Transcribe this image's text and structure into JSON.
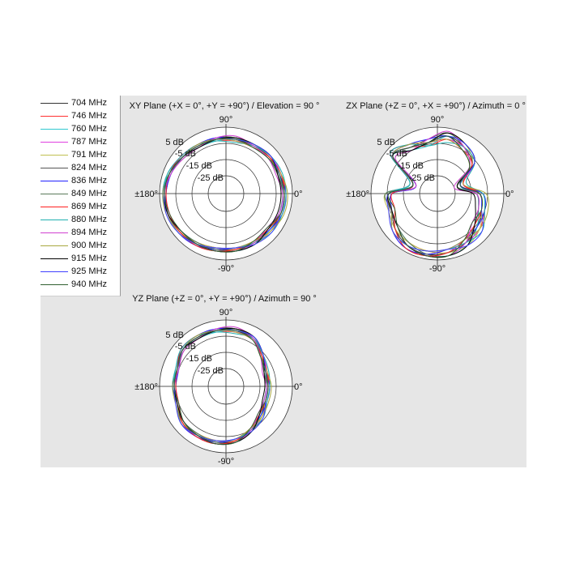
{
  "chart_data": [
    {
      "type": "polar-line",
      "title": "XY Plane (+X = 0°, +Y = +90°) / Elevation = 90 °",
      "angle_labels": {
        "a90": "90°",
        "a0": "0°",
        "a180": "±180°",
        "am90": "-90°"
      },
      "ring_labels": [
        "5 dB",
        "-5 dB",
        "-15 dB",
        "-25 dB"
      ],
      "rings_db": [
        5,
        -5,
        -15,
        -25
      ],
      "rlim_db": [
        -36,
        5
      ],
      "angles_deg": [
        0,
        20,
        40,
        60,
        80,
        100,
        120,
        140,
        160,
        180,
        200,
        220,
        240,
        260,
        280,
        300,
        320,
        340
      ],
      "series": [
        [
          0,
          -1,
          -1,
          -2,
          -2,
          -2,
          -2,
          -1,
          1,
          2,
          2,
          1,
          0,
          -1,
          -1,
          -1,
          -1,
          0
        ],
        [
          1,
          0,
          -1,
          -2,
          -3,
          -3,
          -2,
          -1,
          2,
          3,
          2,
          1,
          -1,
          -2,
          -1,
          -1,
          0,
          1
        ],
        [
          -1,
          -1,
          0,
          -1,
          -2,
          -3,
          -3,
          -1,
          2,
          3,
          2,
          0,
          -1,
          -1,
          0,
          0,
          -1,
          -1
        ],
        [
          0,
          0,
          0,
          -2,
          -3,
          -2,
          -1,
          0,
          1,
          1,
          2,
          2,
          1,
          -1,
          -2,
          -1,
          0,
          0
        ],
        [
          0,
          -2,
          -1,
          -1,
          -1,
          -2,
          -3,
          -2,
          1,
          3,
          3,
          1,
          -1,
          -2,
          -1,
          0,
          0,
          0
        ],
        [
          -1,
          -2,
          -1,
          -2,
          -1,
          -1,
          -2,
          -1,
          0,
          1,
          2,
          1,
          1,
          0,
          -1,
          -1,
          -2,
          -1
        ],
        [
          1,
          -1,
          -2,
          -3,
          -2,
          -1,
          -1,
          -1,
          0,
          1,
          2,
          2,
          1,
          -1,
          -2,
          -2,
          -1,
          1
        ],
        [
          0,
          -2,
          -2,
          -2,
          -1,
          -2,
          -3,
          -2,
          1,
          3,
          2,
          0,
          -1,
          -1,
          0,
          -1,
          -2,
          0
        ],
        [
          0,
          0,
          -1,
          -3,
          -3,
          -2,
          -1,
          0,
          1,
          1,
          1,
          1,
          1,
          0,
          -1,
          -2,
          -2,
          0
        ],
        [
          1,
          1,
          0,
          -2,
          -4,
          -3,
          -1,
          0,
          2,
          2,
          2,
          2,
          0,
          -2,
          -2,
          -1,
          1,
          1
        ],
        [
          -1,
          -3,
          -2,
          -2,
          0,
          -1,
          -3,
          -2,
          0,
          2,
          2,
          0,
          0,
          0,
          0,
          -1,
          -3,
          -1
        ],
        [
          2,
          0,
          -2,
          -3,
          -3,
          -2,
          -1,
          -1,
          1,
          2,
          2,
          2,
          0,
          -2,
          -2,
          -2,
          0,
          2
        ],
        [
          -2,
          -2,
          0,
          -1,
          -1,
          -2,
          -3,
          -1,
          1,
          2,
          2,
          0,
          0,
          0,
          0,
          0,
          -2,
          -2
        ],
        [
          0,
          -1,
          0,
          -1,
          -2,
          -2,
          -2,
          -1,
          1,
          2,
          3,
          2,
          0,
          -2,
          -2,
          0,
          1,
          0
        ],
        [
          0,
          -1,
          -2,
          -3,
          -2,
          -2,
          -2,
          -1,
          1,
          2,
          1,
          0,
          0,
          0,
          0,
          -2,
          -3,
          0
        ]
      ]
    },
    {
      "type": "polar-line",
      "title": "ZX Plane (+Z = 0°, +X = +90°) / Azimuth = 0 °",
      "angle_labels": {
        "a90": "90°",
        "a0": "0°",
        "a180": "±180°",
        "am90": "-90°"
      },
      "ring_labels": [
        "5 dB",
        "-5 dB",
        "-15 dB",
        "-25 dB"
      ],
      "rings_db": [
        5,
        -5,
        -15,
        -25
      ],
      "rlim_db": [
        -36,
        5
      ],
      "angles_deg": [
        0,
        20,
        40,
        60,
        80,
        100,
        120,
        140,
        160,
        180,
        200,
        220,
        240,
        260,
        280,
        300,
        320,
        340
      ],
      "series": [
        [
          -10,
          -21,
          -8,
          -3,
          0,
          -4,
          -3,
          0,
          -20,
          -6,
          -6,
          -2,
          1,
          2,
          1,
          -1,
          -4,
          -7
        ],
        [
          -8,
          -19,
          -8,
          -3,
          -2,
          -6,
          -3,
          0,
          -18,
          -4,
          -6,
          -2,
          -1,
          0,
          1,
          -1,
          -2,
          -5
        ],
        [
          -12,
          -21,
          -6,
          -1,
          0,
          -6,
          -5,
          0,
          -18,
          -4,
          -6,
          -4,
          -1,
          2,
          3,
          1,
          -4,
          -9
        ],
        [
          -10,
          -19,
          -6,
          -3,
          -2,
          -4,
          -1,
          2,
          -20,
          -8,
          -6,
          0,
          3,
          2,
          -1,
          -1,
          -2,
          -7
        ],
        [
          -10,
          -23,
          -8,
          -1,
          2,
          -4,
          -5,
          -2,
          -20,
          -4,
          -4,
          -2,
          -1,
          0,
          1,
          1,
          -2,
          -7
        ],
        [
          -12,
          -23,
          -8,
          -3,
          2,
          -2,
          -3,
          0,
          -22,
          -8,
          -6,
          -2,
          3,
          3,
          1,
          -1,
          -6,
          -9
        ],
        [
          -8,
          -21,
          -10,
          -5,
          0,
          -2,
          -1,
          0,
          -22,
          -8,
          -6,
          0,
          3,
          2,
          -1,
          -3,
          -4,
          -5
        ],
        [
          -10,
          -23,
          -10,
          -3,
          2,
          -4,
          -5,
          -2,
          -20,
          -4,
          -6,
          -4,
          -1,
          2,
          3,
          -1,
          -6,
          -7
        ],
        [
          -10,
          -19,
          -8,
          -5,
          -2,
          -4,
          -1,
          2,
          -20,
          -8,
          -8,
          -2,
          3,
          3,
          1,
          -3,
          -6,
          -7
        ],
        [
          -8,
          -17,
          -6,
          -3,
          -4,
          -6,
          -1,
          2,
          -18,
          -6,
          -6,
          0,
          1,
          0,
          -1,
          -1,
          0,
          -5
        ],
        [
          -12,
          -25,
          -10,
          -3,
          3,
          -2,
          -5,
          -2,
          -22,
          -6,
          -6,
          -4,
          1,
          3,
          3,
          -1,
          -8,
          -9
        ],
        [
          -6,
          -19,
          -10,
          -5,
          -2,
          -4,
          -1,
          0,
          -20,
          -6,
          -6,
          0,
          1,
          0,
          -1,
          -3,
          -2,
          -3
        ],
        [
          -14,
          -23,
          -6,
          -1,
          2,
          -4,
          -5,
          0,
          -20,
          -6,
          -6,
          -4,
          1,
          3,
          3,
          1,
          -6,
          -11
        ],
        [
          -10,
          -21,
          -6,
          -1,
          0,
          -4,
          -3,
          0,
          -20,
          -6,
          -4,
          0,
          1,
          0,
          -1,
          1,
          0,
          -7
        ],
        [
          -10,
          -21,
          -10,
          -5,
          0,
          -4,
          -3,
          0,
          -20,
          -6,
          -8,
          -4,
          1,
          3,
          3,
          -3,
          -8,
          -7
        ]
      ]
    },
    {
      "type": "polar-line",
      "title": "YZ Plane (+Z = 0°, +Y = +90°) / Azimuth = 90 °",
      "angle_labels": {
        "a90": "90°",
        "a0": "0°",
        "a180": "±180°",
        "am90": "-90°"
      },
      "ring_labels": [
        "5 dB",
        "-5 dB",
        "-15 dB",
        "-25 dB"
      ],
      "rings_db": [
        5,
        -5,
        -15,
        -25
      ],
      "rlim_db": [
        -36,
        5
      ],
      "angles_deg": [
        0,
        20,
        40,
        60,
        80,
        100,
        120,
        140,
        160,
        180,
        200,
        220,
        240,
        260,
        280,
        300,
        320,
        340
      ],
      "series": [
        [
          -10,
          -10,
          -7,
          -2,
          -1,
          -1,
          -1,
          -1,
          -4,
          -4,
          -4,
          -1,
          -1,
          -1,
          -2,
          -5,
          -8,
          -10
        ],
        [
          -9,
          -9,
          -7,
          -2,
          -2,
          -2,
          -1,
          -1,
          -3,
          -3,
          -4,
          -1,
          -2,
          -2,
          -2,
          -5,
          -7,
          -9
        ],
        [
          -11,
          -10,
          -6,
          -1,
          -1,
          -2,
          -2,
          -1,
          -3,
          -3,
          -4,
          -2,
          -2,
          -1,
          -1,
          -4,
          -8,
          -11
        ],
        [
          -10,
          -9,
          -6,
          -2,
          -2,
          -1,
          0,
          0,
          -4,
          -5,
          -4,
          0,
          0,
          -1,
          -3,
          -5,
          -7,
          -10
        ],
        [
          -10,
          -11,
          -7,
          -1,
          0,
          -1,
          -2,
          -2,
          -4,
          -3,
          -3,
          -1,
          -2,
          -2,
          -2,
          -4,
          -7,
          -10
        ],
        [
          -11,
          -11,
          -7,
          -2,
          0,
          0,
          -1,
          -1,
          -5,
          -5,
          -4,
          -1,
          0,
          0,
          -2,
          -5,
          -9,
          -11
        ],
        [
          -9,
          -10,
          -8,
          -3,
          -1,
          0,
          0,
          -1,
          -5,
          -5,
          -4,
          0,
          0,
          -1,
          -3,
          -6,
          -8,
          -9
        ],
        [
          -10,
          -11,
          -8,
          -2,
          0,
          -1,
          -2,
          -2,
          -4,
          -3,
          -4,
          -2,
          -2,
          -1,
          -1,
          -5,
          -9,
          -10
        ],
        [
          -10,
          -9,
          -7,
          -3,
          -2,
          -1,
          0,
          0,
          -4,
          -5,
          -5,
          -1,
          0,
          0,
          -2,
          -6,
          -9,
          -10
        ],
        [
          -9,
          -8,
          -6,
          -2,
          -3,
          -2,
          0,
          0,
          -3,
          -4,
          -4,
          0,
          -1,
          -2,
          -3,
          -5,
          -6,
          -9
        ],
        [
          -11,
          -12,
          -8,
          -2,
          1,
          0,
          -2,
          -2,
          -5,
          -4,
          -4,
          -2,
          -1,
          0,
          -1,
          -5,
          -10,
          -11
        ],
        [
          -8,
          -9,
          -8,
          -3,
          -2,
          -1,
          0,
          -1,
          -4,
          -4,
          -4,
          0,
          -1,
          -2,
          -3,
          -6,
          -7,
          -8
        ],
        [
          -12,
          -11,
          -6,
          -1,
          0,
          -1,
          -2,
          -1,
          -4,
          -4,
          -4,
          -2,
          -1,
          0,
          -1,
          -4,
          -9,
          -12
        ],
        [
          -10,
          -10,
          -6,
          -1,
          -1,
          -1,
          -1,
          -1,
          -4,
          -4,
          -3,
          0,
          -1,
          -2,
          -3,
          -4,
          -6,
          -10
        ],
        [
          -10,
          -10,
          -8,
          -3,
          -1,
          -1,
          -1,
          -1,
          -4,
          -4,
          -5,
          -2,
          -1,
          0,
          -1,
          -6,
          -10,
          -10
        ]
      ]
    }
  ],
  "legend": {
    "placement": "top-left",
    "items": [
      {
        "label": "704 MHz",
        "color": "#333333"
      },
      {
        "label": "746 MHz",
        "color": "#ff3030"
      },
      {
        "label": "760 MHz",
        "color": "#30c8d0"
      },
      {
        "label": "787 MHz",
        "color": "#e040e0"
      },
      {
        "label": "791 MHz",
        "color": "#c0c050"
      },
      {
        "label": "824 MHz",
        "color": "#555555"
      },
      {
        "label": "836 MHz",
        "color": "#2020ff"
      },
      {
        "label": "849 MHz",
        "color": "#5a7a5a"
      },
      {
        "label": "869 MHz",
        "color": "#ff2020"
      },
      {
        "label": "880 MHz",
        "color": "#20b0b0"
      },
      {
        "label": "894 MHz",
        "color": "#d040d0"
      },
      {
        "label": "900 MHz",
        "color": "#a8a840"
      },
      {
        "label": "915 MHz",
        "color": "#000000"
      },
      {
        "label": "925 MHz",
        "color": "#4040ff"
      },
      {
        "label": "940 MHz",
        "color": "#306030"
      }
    ]
  }
}
